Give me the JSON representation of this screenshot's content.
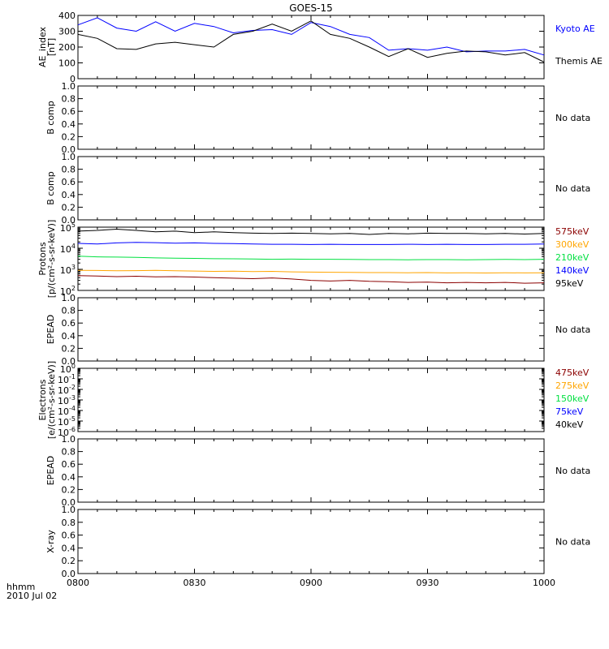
{
  "title": "GOES-15",
  "footer": {
    "line1": "hhmm",
    "line2": "2010 Jul 02"
  },
  "x_ticks": [
    "0800",
    "0830",
    "0900",
    "0930",
    "1000"
  ],
  "no_data_text": "No data",
  "chart_data": [
    {
      "type": "line",
      "panel": "ae",
      "ylabel": [
        "AE_index",
        "[nT]"
      ],
      "ylim": [
        0,
        400
      ],
      "yticks": [
        "0",
        "100",
        "200",
        "300",
        "400"
      ],
      "x": [
        "0800",
        "0805",
        "0810",
        "0815",
        "0820",
        "0825",
        "0830",
        "0835",
        "0840",
        "0845",
        "0850",
        "0855",
        "0900",
        "0905",
        "0910",
        "0915",
        "0920",
        "0925",
        "0930",
        "0935",
        "0940",
        "0945",
        "0950",
        "0955",
        "1000"
      ],
      "series": [
        {
          "name": "Kyoto AE",
          "color": "#0000ff",
          "values": [
            340,
            385,
            320,
            300,
            360,
            300,
            350,
            330,
            290,
            305,
            310,
            280,
            355,
            330,
            280,
            260,
            180,
            190,
            180,
            200,
            170,
            175,
            175,
            185,
            150
          ]
        },
        {
          "name": "Themis AE",
          "color": "#000000",
          "values": [
            280,
            255,
            190,
            185,
            220,
            230,
            215,
            200,
            280,
            300,
            345,
            300,
            365,
            280,
            255,
            200,
            140,
            190,
            135,
            160,
            175,
            170,
            150,
            165,
            105
          ]
        }
      ]
    },
    {
      "type": "line",
      "panel": "bcomp1",
      "ylabel": [
        "B comp"
      ],
      "ylim": [
        0,
        1
      ],
      "yticks": [
        "0.0",
        "0.2",
        "0.4",
        "0.6",
        "0.8",
        "1.0"
      ],
      "series": [],
      "status": "No data"
    },
    {
      "type": "line",
      "panel": "bcomp2",
      "ylabel": [
        "B comp"
      ],
      "ylim": [
        0,
        1
      ],
      "yticks": [
        "0.0",
        "0.2",
        "0.4",
        "0.6",
        "0.8",
        "1.0"
      ],
      "series": [],
      "status": "No data"
    },
    {
      "type": "line",
      "panel": "protons",
      "ylabel": [
        "Protons",
        "[p/(cm²-s-sr-keV)]"
      ],
      "log_scale": true,
      "ylim_exp": [
        2,
        5
      ],
      "yticks_exp": [
        2,
        3,
        4,
        5
      ],
      "x": [
        "0800",
        "0805",
        "0810",
        "0815",
        "0820",
        "0825",
        "0830",
        "0835",
        "0840",
        "0845",
        "0850",
        "0855",
        "0900",
        "0905",
        "0910",
        "0915",
        "0920",
        "0925",
        "0930",
        "0935",
        "0940",
        "0945",
        "0950",
        "0955",
        "1000"
      ],
      "series": [
        {
          "name": "575keV",
          "color": "#8b0000",
          "values": [
            500,
            480,
            450,
            470,
            440,
            450,
            430,
            400,
            380,
            360,
            390,
            350,
            300,
            280,
            300,
            270,
            260,
            240,
            250,
            230,
            240,
            230,
            240,
            220,
            230
          ]
        },
        {
          "name": "300keV",
          "color": "#ffa500",
          "values": [
            900,
            880,
            850,
            870,
            900,
            850,
            830,
            800,
            820,
            780,
            800,
            760,
            740,
            730,
            720,
            700,
            700,
            690,
            700,
            680,
            690,
            670,
            690,
            680,
            690
          ]
        },
        {
          "name": "210keV",
          "color": "#00e040",
          "values": [
            4200,
            3900,
            3800,
            3700,
            3500,
            3400,
            3300,
            3200,
            3150,
            3100,
            3000,
            3050,
            3000,
            3000,
            2950,
            2900,
            2900,
            2850,
            2900,
            2900,
            2850,
            2900,
            2950,
            2900,
            3000
          ]
        },
        {
          "name": "140keV",
          "color": "#0000ff",
          "values": [
            17000,
            16000,
            18000,
            19000,
            18500,
            17500,
            18000,
            17000,
            16500,
            16000,
            15500,
            15500,
            15000,
            15500,
            15000,
            15000,
            15000,
            15500,
            15000,
            15500,
            15000,
            15000,
            15500,
            15500,
            16000
          ]
        },
        {
          "name": "95keV",
          "color": "#000000",
          "values": [
            65000,
            70000,
            80000,
            70000,
            60000,
            65000,
            55000,
            60000,
            55000,
            52000,
            50000,
            52000,
            50000,
            48000,
            50000,
            45000,
            50000,
            48000,
            52000,
            50000,
            50000,
            48000,
            50000,
            47000,
            50000
          ]
        }
      ]
    },
    {
      "type": "line",
      "panel": "epead1",
      "ylabel": [
        "EPEAD"
      ],
      "ylim": [
        0,
        1
      ],
      "yticks": [
        "0.0",
        "0.2",
        "0.4",
        "0.6",
        "0.8",
        "1.0"
      ],
      "series": [],
      "status": "No data"
    },
    {
      "type": "line",
      "panel": "electrons",
      "ylabel": [
        "Electrons",
        "[e/(cm²-s-sr-keV)]"
      ],
      "log_scale": true,
      "ylim_exp": [
        -6,
        0
      ],
      "yticks_exp": [
        0,
        -1,
        -2,
        -3,
        -4,
        -5,
        -6
      ],
      "series": [
        {
          "name": "475keV",
          "color": "#8b0000"
        },
        {
          "name": "275keV",
          "color": "#ffa500"
        },
        {
          "name": "150keV",
          "color": "#00e040"
        },
        {
          "name": "75keV",
          "color": "#0000ff"
        },
        {
          "name": "40keV",
          "color": "#000000"
        }
      ]
    },
    {
      "type": "line",
      "panel": "epead2",
      "ylabel": [
        "EPEAD"
      ],
      "ylim": [
        0,
        1
      ],
      "yticks": [
        "0.0",
        "0.2",
        "0.4",
        "0.6",
        "0.8",
        "1.0"
      ],
      "series": [],
      "status": "No data"
    },
    {
      "type": "line",
      "panel": "xray",
      "ylabel": [
        "X-ray"
      ],
      "ylim": [
        0,
        1
      ],
      "yticks": [
        "0.0",
        "0.2",
        "0.4",
        "0.6",
        "0.8",
        "1.0"
      ],
      "series": [],
      "status": "No data"
    }
  ]
}
